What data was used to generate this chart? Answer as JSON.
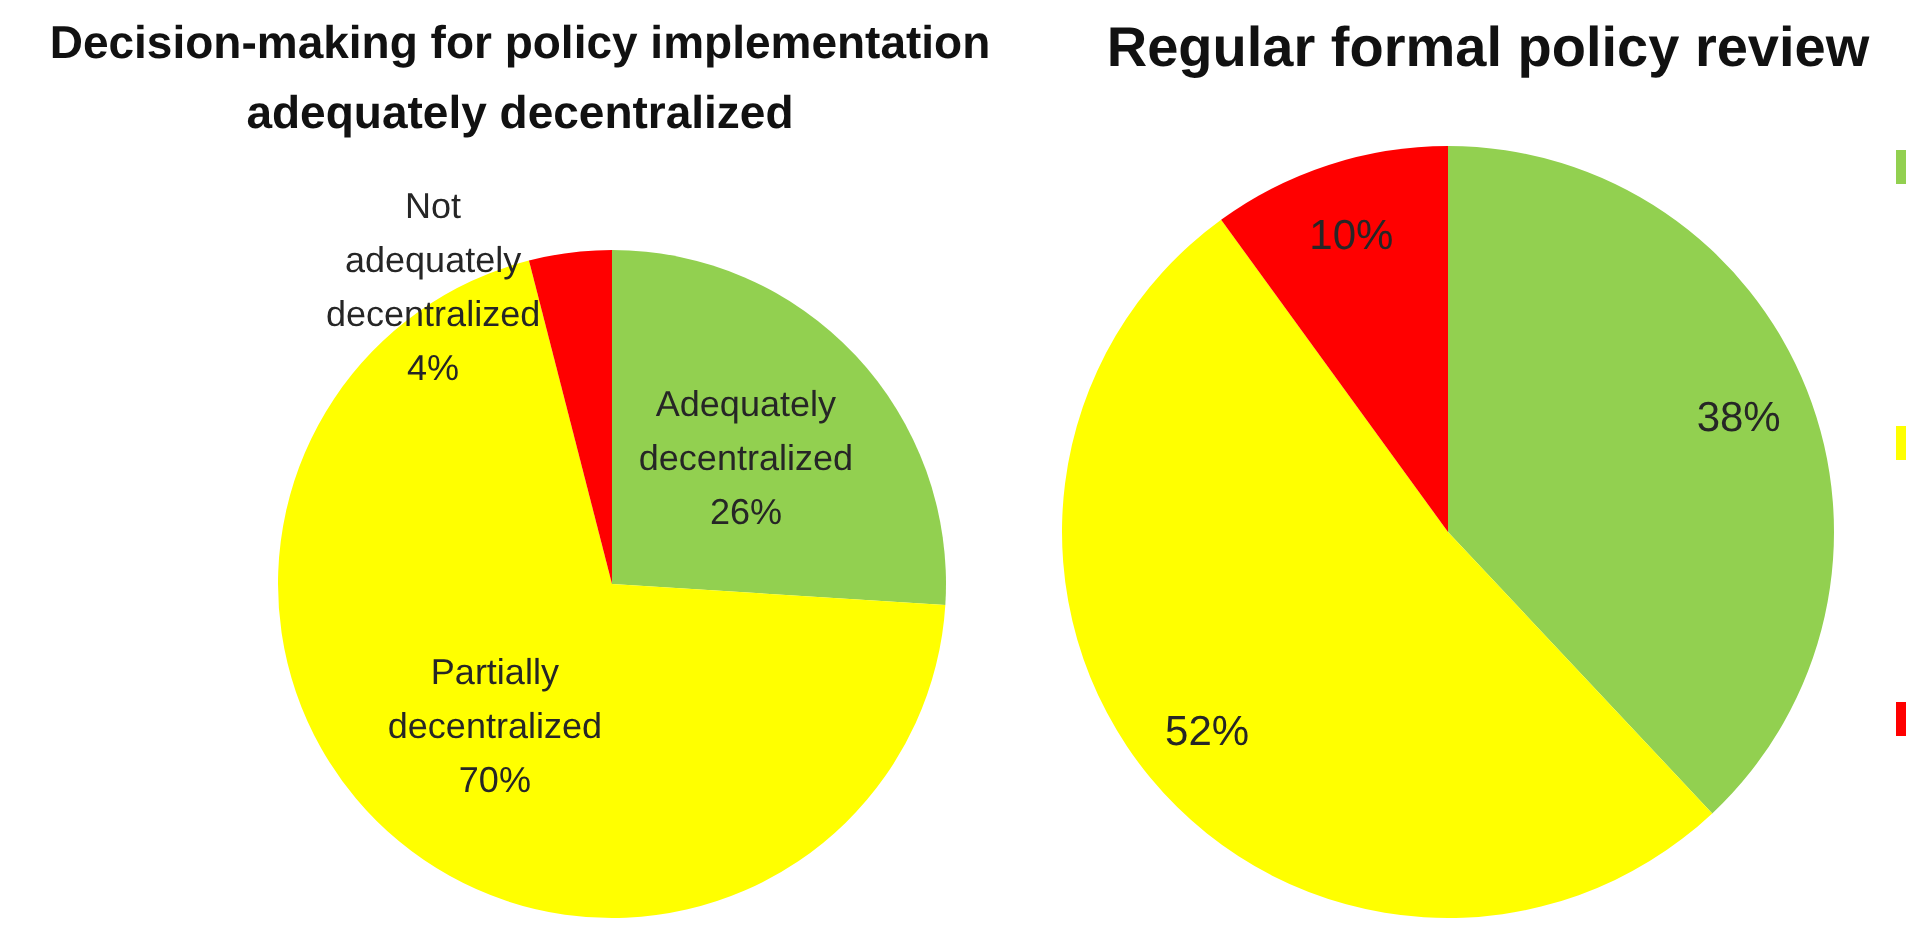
{
  "chart_data": [
    {
      "type": "pie",
      "title": "Decision-making for policy implementation adequately decentralized",
      "categories": [
        "Adequately decentralized",
        "Partially decentralized",
        "Not adequately decentralized"
      ],
      "values": [
        26,
        70,
        4
      ],
      "colors": [
        "#92d050",
        "#ffff00",
        "#ff0000"
      ],
      "value_labels": [
        "26%",
        "70%",
        "4%"
      ]
    },
    {
      "type": "pie",
      "title": "Regular formal policy review",
      "categories": [
        null,
        null,
        null
      ],
      "values": [
        38,
        52,
        10
      ],
      "colors": [
        "#92d050",
        "#ffff00",
        "#ff0000"
      ],
      "value_labels": [
        "38%",
        "52%",
        "10%"
      ]
    }
  ]
}
